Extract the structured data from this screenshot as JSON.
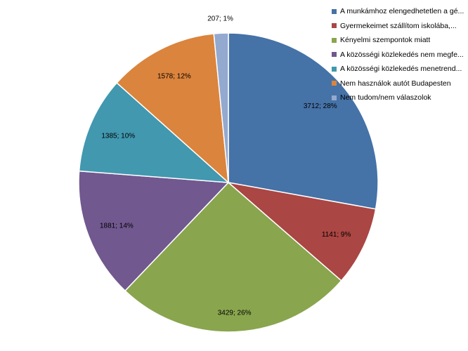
{
  "chart_data": {
    "type": "pie",
    "title": "",
    "slices": [
      {
        "name": "A munkámhoz elengedhetetlen a gé...",
        "value": 3712,
        "percent": "28%",
        "color": "#4572A7"
      },
      {
        "name": "Gyermekeimet szállítom iskolába,...",
        "value": 1141,
        "percent": "9%",
        "color": "#AA4643"
      },
      {
        "name": "Kényelmi szempontok miatt",
        "value": 3429,
        "percent": "26%",
        "color": "#89A54E"
      },
      {
        "name": "A közösségi közlekedés nem megfe...",
        "value": 1881,
        "percent": "14%",
        "color": "#71588F"
      },
      {
        "name": "A közösségi közlekedés menetrend...",
        "value": 1385,
        "percent": "10%",
        "color": "#4198AF"
      },
      {
        "name": "Nem használok autót Budapesten",
        "value": 1578,
        "percent": "12%",
        "color": "#DB843D"
      },
      {
        "name": "Nem tudom/nem válaszolok",
        "value": 207,
        "percent": "1%",
        "color": "#93A9CF"
      }
    ],
    "legend_position": "top-right",
    "data_labels": [
      "3712; 28%",
      "1141; 9%",
      "3429; 26%",
      "1881; 14%",
      "1385; 10%",
      "1578; 12%",
      "207; 1%"
    ]
  }
}
